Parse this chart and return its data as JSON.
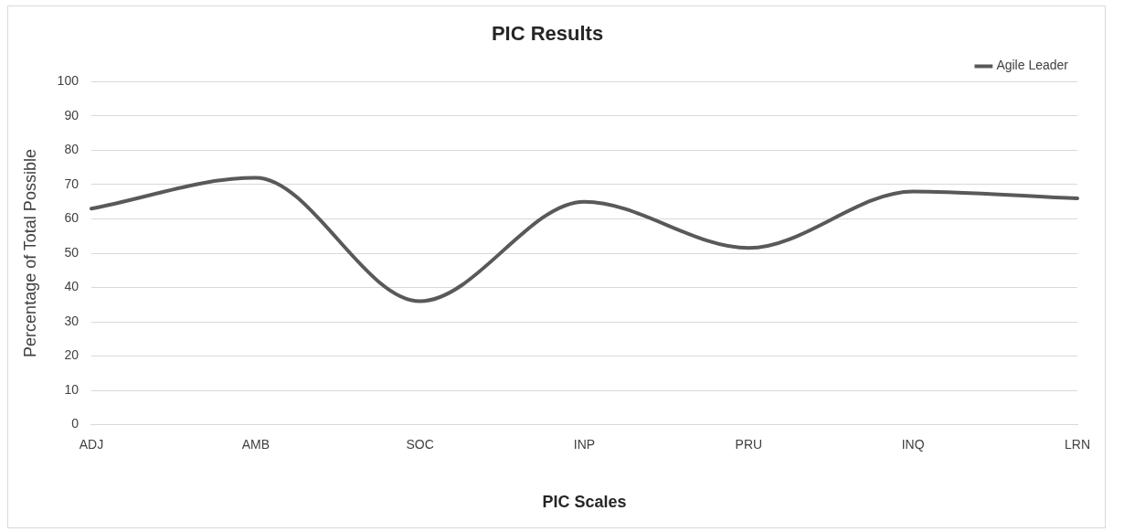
{
  "chart_data": {
    "type": "line",
    "title": "PIC Results",
    "xlabel": "PIC Scales",
    "ylabel": "Percentage of Total Possible",
    "categories": [
      "ADJ",
      "AMB",
      "SOC",
      "INP",
      "PRU",
      "INQ",
      "LRN"
    ],
    "series": [
      {
        "name": "Agile Leader",
        "color": "#595959",
        "values": [
          63,
          72,
          36,
          65,
          51.5,
          68,
          66
        ]
      }
    ],
    "ylim": [
      0,
      100
    ],
    "yticks": [
      0,
      10,
      20,
      30,
      40,
      50,
      60,
      70,
      80,
      90,
      100
    ],
    "grid": "y",
    "legend": "top right",
    "marker": "none",
    "line_style": "solid"
  }
}
